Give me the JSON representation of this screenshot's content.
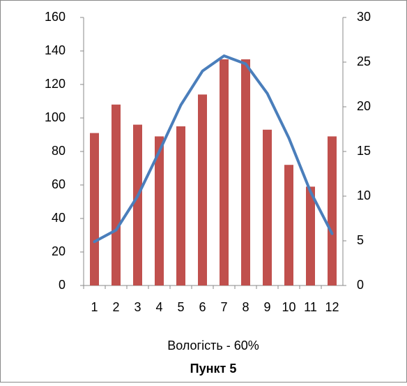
{
  "chart_data": {
    "type": "bar",
    "categories": [
      "1",
      "2",
      "3",
      "4",
      "5",
      "6",
      "7",
      "8",
      "9",
      "10",
      "11",
      "12"
    ],
    "series": [
      {
        "type": "bar",
        "color": "#c0504d",
        "values": [
          91,
          108,
          96,
          89,
          95,
          114,
          135,
          135,
          93,
          72,
          59,
          89
        ]
      },
      {
        "type": "line",
        "axis": "y2",
        "color": "#4a7ebb",
        "values": [
          4.9,
          6.2,
          10,
          15,
          20.2,
          24,
          25.7,
          24.8,
          21.5,
          16.5,
          10.5,
          5.8
        ]
      }
    ],
    "ylim": [
      0,
      160
    ],
    "yticks": [
      0,
      20,
      40,
      60,
      80,
      100,
      120,
      140,
      160
    ],
    "y2lim": [
      0,
      30
    ],
    "y2ticks": [
      0,
      5,
      10,
      15,
      20,
      25,
      30
    ],
    "grid": false,
    "xlabel": "Вологість - 60%",
    "title": "Пункт 5"
  }
}
